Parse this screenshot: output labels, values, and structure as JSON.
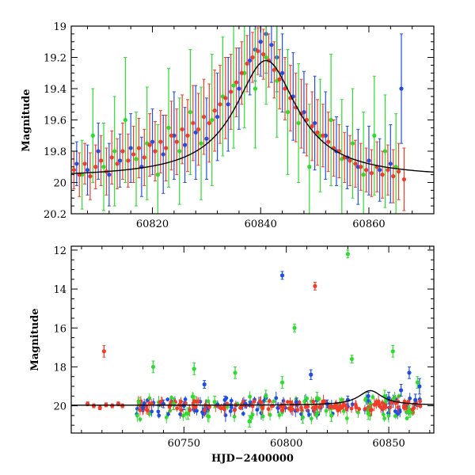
{
  "chart_data": [
    {
      "type": "scatter",
      "title": "",
      "xlabel": "",
      "ylabel": "Magnitude",
      "xlim": [
        60805,
        60872
      ],
      "ylim": [
        20.2,
        19.0
      ],
      "y_inverted": true,
      "xticks": [
        60820,
        60840,
        60860
      ],
      "yticks": [
        19,
        19.2,
        19.4,
        19.6,
        19.8,
        20,
        20.2
      ],
      "grid": false,
      "legend": "none",
      "series": [
        {
          "color": "#1f4fe0",
          "points": [
            [
              60806,
              19.88,
              0.14
            ],
            [
              60808,
              19.92,
              0.16
            ],
            [
              60810,
              19.8,
              0.18
            ],
            [
              60812,
              19.95,
              0.2
            ],
            [
              60814,
              19.86,
              0.17
            ],
            [
              60816,
              19.78,
              0.22
            ],
            [
              60818,
              19.9,
              0.19
            ],
            [
              60820,
              19.74,
              0.21
            ],
            [
              60822,
              19.82,
              0.25
            ],
            [
              60824,
              19.7,
              0.28
            ],
            [
              60826,
              19.76,
              0.24
            ],
            [
              60828,
              19.68,
              0.3
            ],
            [
              60830,
              19.72,
              0.26
            ],
            [
              60832,
              19.58,
              0.28
            ],
            [
              60834,
              19.5,
              0.3
            ],
            [
              60836,
              19.4,
              0.26
            ],
            [
              60838,
              19.22,
              0.22
            ],
            [
              60839,
              19.15,
              0.2
            ],
            [
              60840,
              19.1,
              0.22
            ],
            [
              60841,
              19.05,
              0.25
            ],
            [
              60842,
              19.12,
              0.24
            ],
            [
              60843,
              19.2,
              0.22
            ],
            [
              60844,
              19.3,
              0.25
            ],
            [
              60846,
              19.45,
              0.28
            ],
            [
              60848,
              19.55,
              0.26
            ],
            [
              60850,
              19.62,
              0.3
            ],
            [
              60852,
              19.7,
              0.28
            ],
            [
              60854,
              19.8,
              0.22
            ],
            [
              60856,
              19.84,
              0.2
            ],
            [
              60858,
              19.9,
              0.24
            ],
            [
              60860,
              19.86,
              0.22
            ],
            [
              60862,
              19.92,
              0.2
            ],
            [
              60864,
              19.88,
              0.25
            ],
            [
              60866,
              19.4,
              0.35
            ]
          ]
        },
        {
          "color": "#2edb2e",
          "points": [
            [
              60807,
              19.95,
              0.22
            ],
            [
              60809,
              19.7,
              0.3
            ],
            [
              60811,
              19.9,
              0.28
            ],
            [
              60813,
              19.8,
              0.35
            ],
            [
              60815,
              19.6,
              0.4
            ],
            [
              60817,
              19.85,
              0.3
            ],
            [
              60819,
              19.75,
              0.36
            ],
            [
              60821,
              19.95,
              0.32
            ],
            [
              60823,
              19.65,
              0.38
            ],
            [
              60825,
              19.8,
              0.34
            ],
            [
              60827,
              19.55,
              0.4
            ],
            [
              60829,
              19.75,
              0.36
            ],
            [
              60831,
              19.6,
              0.42
            ],
            [
              60833,
              19.45,
              0.38
            ],
            [
              60835,
              19.38,
              0.4
            ],
            [
              60837,
              19.3,
              0.35
            ],
            [
              60839,
              19.4,
              0.38
            ],
            [
              60841,
              19.2,
              0.3
            ],
            [
              60843,
              19.35,
              0.36
            ],
            [
              60845,
              19.55,
              0.4
            ],
            [
              60847,
              19.62,
              0.38
            ],
            [
              60849,
              19.9,
              0.4
            ],
            [
              60851,
              19.7,
              0.36
            ],
            [
              60853,
              19.6,
              0.42
            ],
            [
              60855,
              19.85,
              0.38
            ],
            [
              60857,
              19.75,
              0.35
            ],
            [
              60859,
              19.95,
              0.4
            ],
            [
              60861,
              19.7,
              0.38
            ],
            [
              60863,
              19.8,
              0.36
            ],
            [
              60865,
              19.9,
              0.34
            ]
          ]
        },
        {
          "color": "#f03c28",
          "points": [
            [
              60805.5,
              19.92,
              0.12
            ],
            [
              60806.5,
              19.95,
              0.14
            ],
            [
              60807.5,
              19.88,
              0.13
            ],
            [
              60808.5,
              19.96,
              0.15
            ],
            [
              60809.5,
              19.9,
              0.14
            ],
            [
              60810.5,
              19.86,
              0.16
            ],
            [
              60811.5,
              19.93,
              0.15
            ],
            [
              60812.5,
              19.84,
              0.17
            ],
            [
              60813.5,
              19.88,
              0.16
            ],
            [
              60814.5,
              19.8,
              0.18
            ],
            [
              60815.5,
              19.86,
              0.17
            ],
            [
              60816.5,
              19.82,
              0.18
            ],
            [
              60817.5,
              19.78,
              0.19
            ],
            [
              60818.5,
              19.84,
              0.18
            ],
            [
              60819.5,
              19.76,
              0.2
            ],
            [
              60820.5,
              19.8,
              0.19
            ],
            [
              60821.5,
              19.74,
              0.2
            ],
            [
              60822.5,
              19.78,
              0.21
            ],
            [
              60823.5,
              19.7,
              0.22
            ],
            [
              60824.5,
              19.74,
              0.21
            ],
            [
              60825.5,
              19.66,
              0.22
            ],
            [
              60826.5,
              19.7,
              0.23
            ],
            [
              60827.5,
              19.62,
              0.24
            ],
            [
              60828.5,
              19.66,
              0.23
            ],
            [
              60829.5,
              19.58,
              0.24
            ],
            [
              60830.5,
              19.62,
              0.25
            ],
            [
              60831.5,
              19.54,
              0.26
            ],
            [
              60832.5,
              19.5,
              0.25
            ],
            [
              60833.5,
              19.46,
              0.26
            ],
            [
              60834.5,
              19.42,
              0.24
            ],
            [
              60835.5,
              19.36,
              0.22
            ],
            [
              60836.5,
              19.3,
              0.2
            ],
            [
              60837.5,
              19.24,
              0.18
            ],
            [
              60838.5,
              19.2,
              0.16
            ],
            [
              60839.5,
              19.16,
              0.15
            ],
            [
              60840.5,
              19.18,
              0.16
            ],
            [
              60841.5,
              19.22,
              0.17
            ],
            [
              60842.5,
              19.28,
              0.18
            ],
            [
              60843.5,
              19.34,
              0.19
            ],
            [
              60844.5,
              19.4,
              0.2
            ],
            [
              60845.5,
              19.46,
              0.21
            ],
            [
              60846.5,
              19.52,
              0.22
            ],
            [
              60847.5,
              19.56,
              0.22
            ],
            [
              60848.5,
              19.6,
              0.23
            ],
            [
              60849.5,
              19.64,
              0.22
            ],
            [
              60850.5,
              19.68,
              0.21
            ],
            [
              60851.5,
              19.7,
              0.2
            ],
            [
              60852.5,
              19.74,
              0.19
            ],
            [
              60853.5,
              19.78,
              0.18
            ],
            [
              60854.5,
              19.8,
              0.17
            ],
            [
              60855.5,
              19.84,
              0.16
            ],
            [
              60856.5,
              19.86,
              0.16
            ],
            [
              60857.5,
              19.88,
              0.15
            ],
            [
              60858.5,
              19.9,
              0.15
            ],
            [
              60859.5,
              19.92,
              0.14
            ],
            [
              60860.5,
              19.94,
              0.15
            ],
            [
              60861.5,
              19.9,
              0.16
            ],
            [
              60862.5,
              19.95,
              0.15
            ],
            [
              60863.5,
              19.92,
              0.16
            ],
            [
              60864.5,
              19.96,
              0.17
            ],
            [
              60865.5,
              19.93,
              0.18
            ],
            [
              60866.5,
              19.98,
              0.2
            ]
          ]
        }
      ],
      "model_curve": {
        "color": "#000000",
        "t0": 60841,
        "peak": 19.22,
        "base": 19.97,
        "width": 7
      }
    },
    {
      "type": "scatter",
      "title": "",
      "xlabel": "HJD−2400000",
      "ylabel": "Magnitude",
      "xlim": [
        60695,
        60872
      ],
      "ylim": [
        21.4,
        11.8
      ],
      "y_inverted": true,
      "xticks": [
        60750,
        60800,
        60850
      ],
      "yticks": [
        12,
        14,
        16,
        18,
        20
      ],
      "grid": false,
      "legend": "none",
      "series": [
        {
          "color": "#1f4fe0",
          "points": [
            [
              60730,
              20.1,
              0.2
            ],
            [
              60740,
              19.9,
              0.2
            ],
            [
              60750,
              20.0,
              0.2
            ],
            [
              60760,
              18.9,
              0.2
            ],
            [
              60770,
              19.7,
              0.2
            ],
            [
              60780,
              19.9,
              0.2
            ],
            [
              60790,
              19.6,
              0.2
            ],
            [
              60798,
              13.3,
              0.2
            ],
            [
              60805,
              19.8,
              0.2
            ],
            [
              60812,
              18.4,
              0.25
            ],
            [
              60820,
              19.9,
              0.2
            ],
            [
              60830,
              19.7,
              0.2
            ],
            [
              60840,
              19.5,
              0.2
            ],
            [
              60850,
              19.6,
              0.3
            ],
            [
              60856,
              19.2,
              0.3
            ],
            [
              60860,
              18.3,
              0.3
            ],
            [
              60863,
              19.7,
              0.3
            ],
            [
              60865,
              19.0,
              0.4
            ]
          ]
        },
        {
          "color": "#2edb2e",
          "points": [
            [
              60728,
              19.8,
              0.2
            ],
            [
              60735,
              18.0,
              0.3
            ],
            [
              60745,
              19.9,
              0.3
            ],
            [
              60752,
              20.4,
              0.3
            ],
            [
              60755,
              18.1,
              0.3
            ],
            [
              60765,
              19.8,
              0.3
            ],
            [
              60775,
              18.3,
              0.3
            ],
            [
              60782,
              20.8,
              0.3
            ],
            [
              60790,
              19.5,
              0.3
            ],
            [
              60798,
              18.8,
              0.3
            ],
            [
              60804,
              16.0,
              0.2
            ],
            [
              60808,
              20.6,
              0.3
            ],
            [
              60815,
              19.6,
              0.3
            ],
            [
              60822,
              20.5,
              0.3
            ],
            [
              60830,
              12.2,
              0.2
            ],
            [
              60832,
              17.6,
              0.2
            ],
            [
              60840,
              20.4,
              0.3
            ],
            [
              60848,
              19.5,
              0.3
            ],
            [
              60852,
              17.2,
              0.3
            ],
            [
              60860,
              20.3,
              0.3
            ],
            [
              60864,
              18.8,
              0.3
            ]
          ]
        },
        {
          "color": "#f03c28",
          "points": [
            [
              60703,
              19.9,
              0.1
            ],
            [
              60706,
              20.0,
              0.1
            ],
            [
              60709,
              20.1,
              0.1
            ],
            [
              60711,
              17.2,
              0.3
            ],
            [
              60712,
              19.95,
              0.1
            ],
            [
              60715,
              20.0,
              0.1
            ],
            [
              60718,
              19.9,
              0.1
            ],
            [
              60720,
              20.0,
              0.1
            ],
            [
              60814,
              13.85,
              0.2
            ]
          ]
        }
      ],
      "dense_band": [
        {
          "color": "#1f4fe0",
          "x_from": 60727,
          "x_to": 60866,
          "count": 90,
          "center": 20.05,
          "spread": 0.45
        },
        {
          "color": "#2edb2e",
          "x_from": 60727,
          "x_to": 60866,
          "count": 70,
          "center": 20.1,
          "spread": 0.6
        },
        {
          "color": "#f03c28",
          "x_from": 60727,
          "x_to": 60866,
          "count": 160,
          "center": 20.0,
          "spread": 0.25
        }
      ],
      "model_curve": {
        "color": "#000000",
        "t0": 60841,
        "peak": 19.22,
        "base": 19.97,
        "width": 7
      }
    }
  ]
}
